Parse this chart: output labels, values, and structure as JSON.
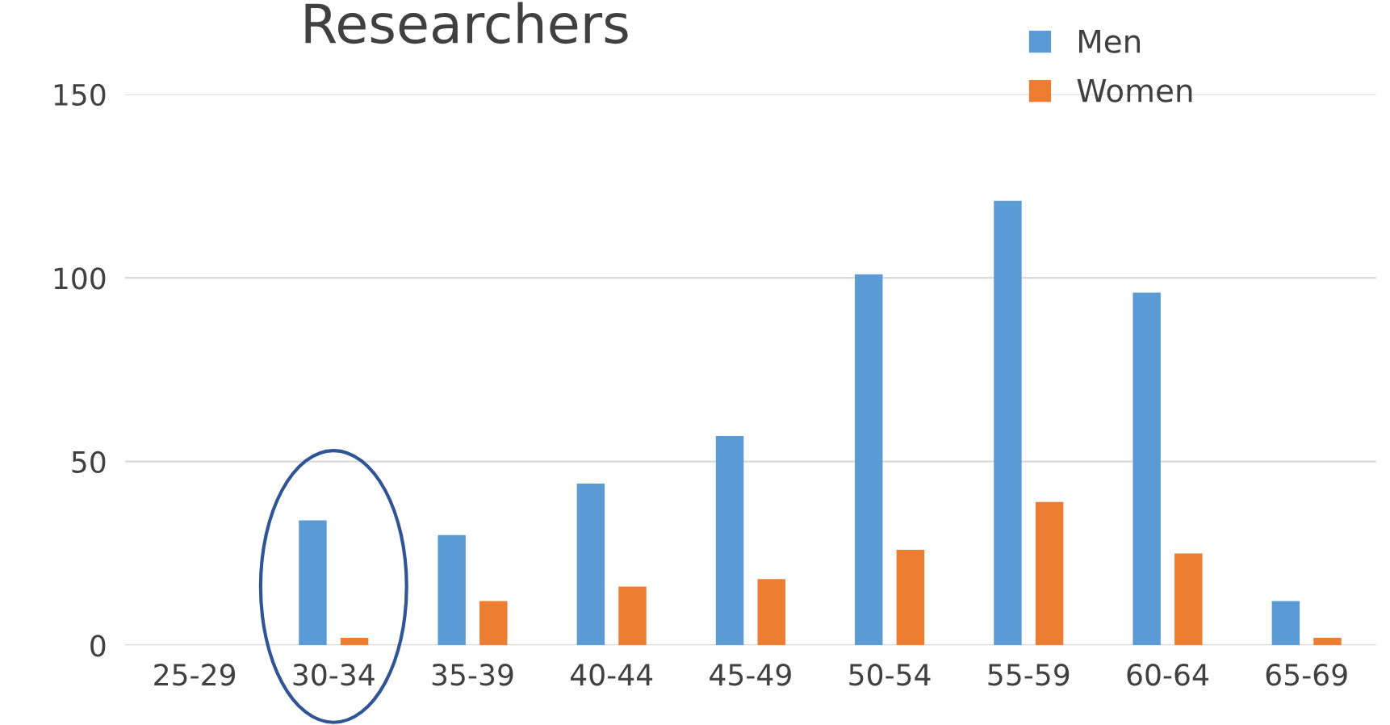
{
  "chart_data": {
    "type": "bar",
    "title": "Researchers",
    "categories": [
      "25-29",
      "30-34",
      "35-39",
      "40-44",
      "45-49",
      "50-54",
      "55-59",
      "60-64",
      "65-69"
    ],
    "series": [
      {
        "name": "Men",
        "color": "#5b9bd5",
        "values": [
          0,
          34,
          30,
          44,
          57,
          101,
          121,
          96,
          12
        ]
      },
      {
        "name": "Women",
        "color": "#ed7d31",
        "values": [
          0,
          2,
          12,
          16,
          18,
          26,
          39,
          25,
          2
        ]
      }
    ],
    "ylim": [
      0,
      150
    ],
    "yticks": [
      0,
      50,
      100,
      150
    ],
    "grid": "y",
    "legend": "top right"
  }
}
